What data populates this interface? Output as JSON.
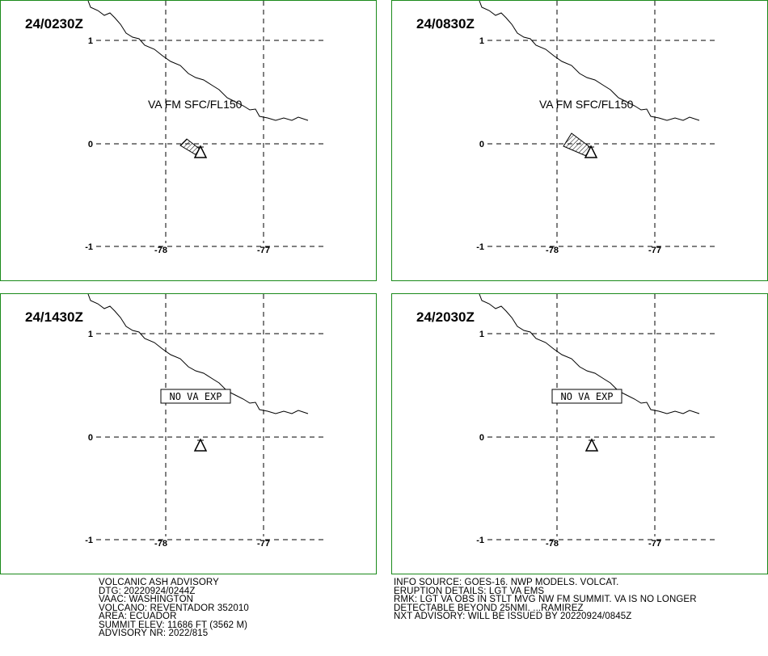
{
  "panels": [
    {
      "time": "24/0230Z",
      "annotation": "VA FM SFC/FL150",
      "boxed": false,
      "ash": "small",
      "lat_labels": [
        "1",
        "0",
        "-1"
      ],
      "lon_labels": [
        "-78",
        "-77"
      ]
    },
    {
      "time": "24/0830Z",
      "annotation": "VA FM SFC/FL150",
      "boxed": false,
      "ash": "large",
      "lat_labels": [
        "1",
        "0",
        "-1"
      ],
      "lon_labels": [
        "-78",
        "-77"
      ]
    },
    {
      "time": "24/1430Z",
      "annotation": "NO VA EXP",
      "boxed": true,
      "ash": "none",
      "lat_labels": [
        "1",
        "0",
        "-1"
      ],
      "lon_labels": [
        "-78",
        "-77"
      ]
    },
    {
      "time": "24/2030Z",
      "annotation": "NO VA EXP",
      "boxed": true,
      "ash": "none",
      "lat_labels": [
        "1",
        "0",
        "-1"
      ],
      "lon_labels": [
        "-78",
        "-77"
      ]
    }
  ],
  "advisory_left": [
    "VOLCANIC ASH ADVISORY",
    "DTG: 20220924/0244Z",
    "VAAC: WASHINGTON",
    "VOLCANO: REVENTADOR 352010",
    "AREA: ECUADOR",
    "SUMMIT ELEV: 11686 FT (3562 M)",
    "ADVISORY NR: 2022/815"
  ],
  "advisory_right": [
    "INFO SOURCE: GOES-16. NWP MODELS. VOLCAT.",
    "ERUPTION DETAILS: LGT VA EMS",
    "RMK: LGT VA OBS IN STLT MVG NW FM SUMMIT. VA IS NO LONGER",
    "DETECTABLE BEYOND 25NMI. ...RAMIREZ",
    "NXT ADVISORY: WILL BE ISSUED BY 20220924/0845Z"
  ]
}
